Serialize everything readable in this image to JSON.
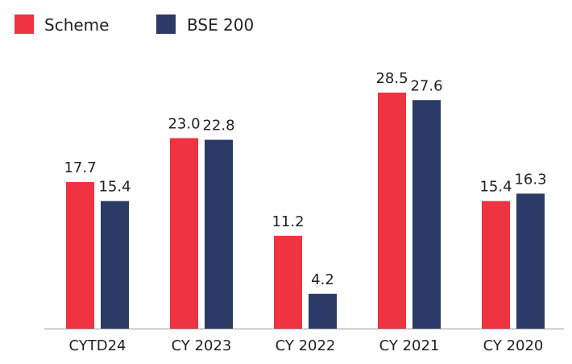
{
  "chart_data": {
    "type": "bar",
    "categories": [
      "CYTD24",
      "CY 2023",
      "CY 2022",
      "CY 2021",
      "CY 2020"
    ],
    "series": [
      {
        "name": "Scheme",
        "color": "#ef3340",
        "values": [
          17.7,
          23.0,
          11.2,
          28.5,
          15.4
        ],
        "labels": [
          "17.7",
          "23.0",
          "11.2",
          "28.5",
          "15.4"
        ]
      },
      {
        "name": "BSE 200",
        "color": "#2b3a67",
        "values": [
          15.4,
          22.8,
          4.2,
          27.6,
          16.3
        ],
        "labels": [
          "15.4",
          "22.8",
          "4.2",
          "27.6",
          "16.3"
        ]
      }
    ],
    "ylim": [
      0,
      28.5
    ],
    "grid": false,
    "legend_position": "top-left",
    "axis_color": "#999999"
  }
}
